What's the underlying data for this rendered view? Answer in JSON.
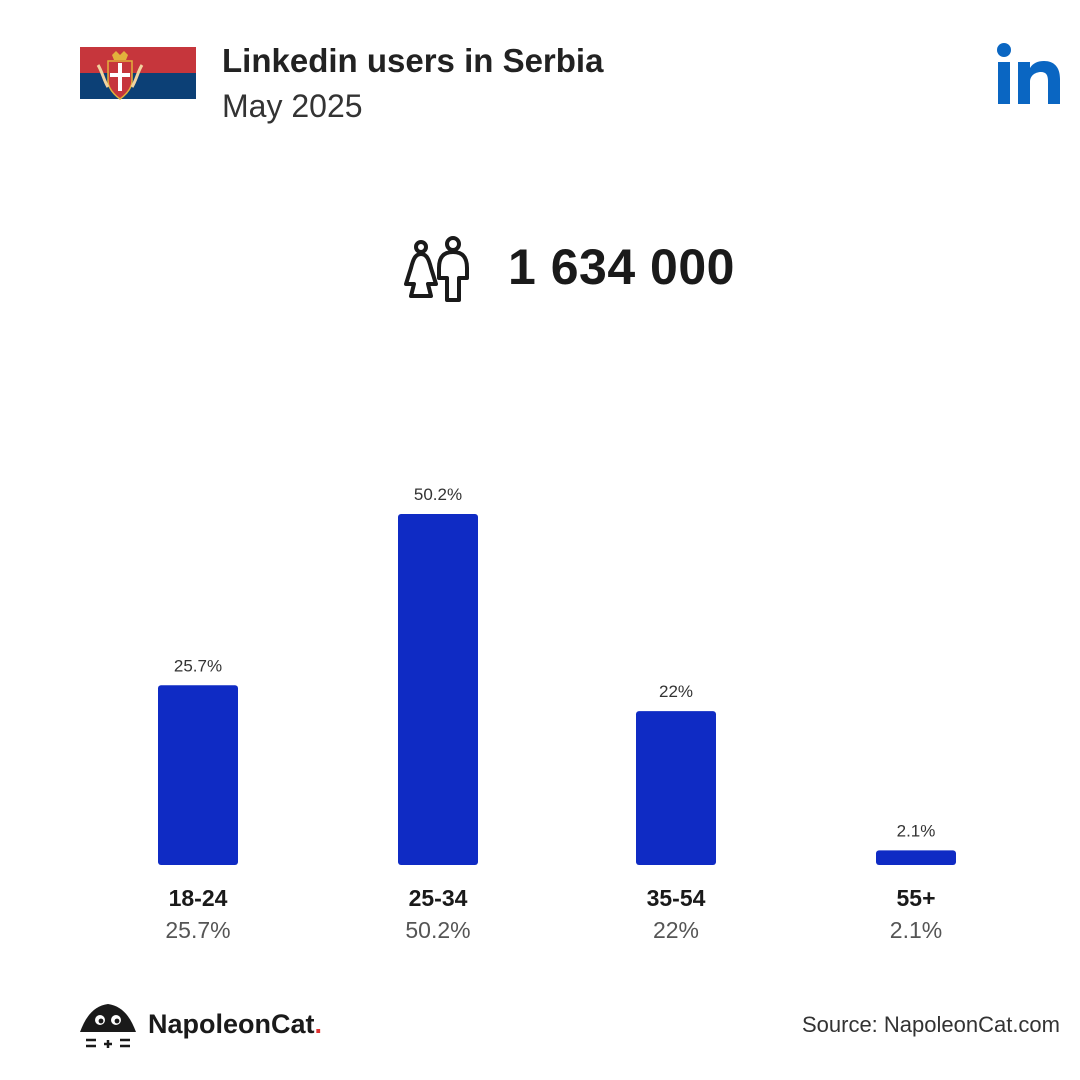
{
  "header": {
    "title": "Linkedin users in Serbia",
    "subtitle": "May 2025"
  },
  "flag": {
    "colors": [
      "#c6363c",
      "#0c4076",
      "#ffffff"
    ]
  },
  "total": {
    "value": "1 634 000",
    "icon": "people-icon"
  },
  "chart_data": {
    "type": "bar",
    "categories": [
      "18-24",
      "25-34",
      "35-54",
      "55+"
    ],
    "values": [
      25.7,
      50.2,
      22,
      2.1
    ],
    "value_labels": [
      "25.7%",
      "50.2%",
      "22%",
      "2.1%"
    ],
    "bar_color": "#0f2bc4",
    "ylim": [
      0,
      50.2
    ]
  },
  "footer": {
    "brand": "NapoleonCat",
    "brand_dot": ".",
    "source": "Source: NapoleonCat.com"
  },
  "colors": {
    "linkedin_blue": "#0a66c2",
    "accent_red": "#e0312f"
  }
}
